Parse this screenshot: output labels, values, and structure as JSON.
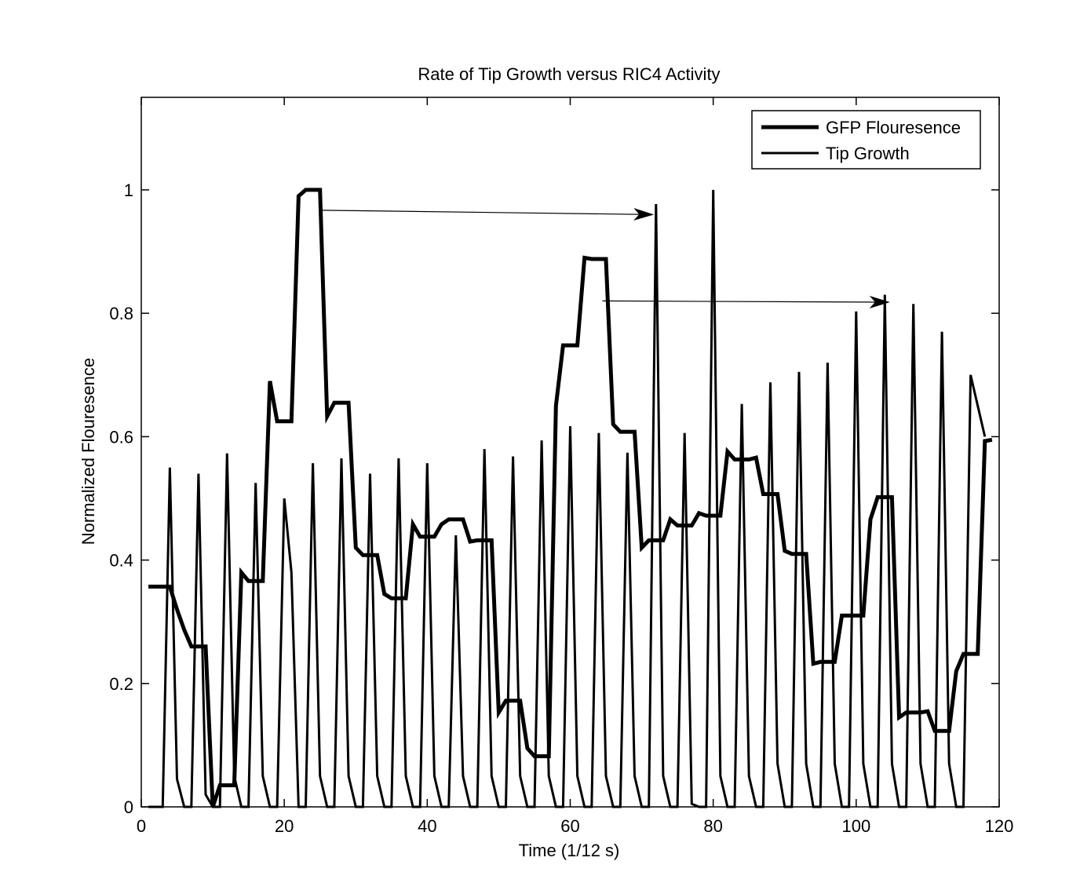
{
  "chart_data": {
    "type": "line",
    "title": "Rate of Tip Growth versus RIC4 Activity",
    "xlabel": "Time (1/12 s)",
    "ylabel": "Normalized Flouresence",
    "xlim": [
      0,
      120
    ],
    "ylim": [
      0,
      1.15
    ],
    "xticks": [
      0,
      20,
      40,
      60,
      80,
      100,
      120
    ],
    "yticks": [
      0,
      0.2,
      0.4,
      0.6,
      0.8,
      1
    ],
    "xtick_labels": [
      "0",
      "20",
      "40",
      "60",
      "80",
      "100",
      "120"
    ],
    "ytick_labels": [
      "0",
      "0.2",
      "0.4",
      "0.6",
      "0.8",
      "1"
    ],
    "grid": false,
    "legend_position": "top-right",
    "series": [
      {
        "name": "GFP Flouresence",
        "style": "thick",
        "x": [
          1,
          2,
          3,
          4,
          5,
          6,
          7,
          8,
          9,
          10,
          11,
          12,
          13,
          14,
          15,
          16,
          17,
          18,
          19,
          20,
          21,
          22,
          23,
          24,
          25,
          26,
          27,
          28,
          29,
          30,
          31,
          32,
          33,
          34,
          35,
          36,
          37,
          38,
          39,
          40,
          41,
          42,
          43,
          44,
          45,
          46,
          47,
          48,
          49,
          50,
          51,
          52,
          53,
          54,
          55,
          56,
          57,
          58,
          59,
          60,
          61,
          62,
          63,
          64,
          65,
          66,
          67,
          68,
          69,
          70,
          71,
          72,
          73,
          74,
          75,
          76,
          77,
          78,
          79,
          80,
          81,
          82,
          83,
          84,
          85,
          86,
          87,
          88,
          89,
          90,
          91,
          92,
          93,
          94,
          95,
          96,
          97,
          98,
          99,
          100,
          101,
          102,
          103,
          104,
          105,
          106,
          107,
          108,
          109,
          110,
          111,
          112,
          113,
          114,
          115,
          116,
          117,
          118,
          119
        ],
        "y": [
          0.357,
          0.357,
          0.357,
          0.357,
          0.32,
          0.287,
          0.26,
          0.26,
          0.26,
          0.0,
          0.035,
          0.035,
          0.035,
          0.38,
          0.366,
          0.366,
          0.366,
          0.69,
          0.625,
          0.625,
          0.625,
          0.99,
          1.0,
          1.0,
          1.0,
          0.633,
          0.655,
          0.655,
          0.655,
          0.42,
          0.408,
          0.408,
          0.408,
          0.345,
          0.338,
          0.338,
          0.338,
          0.458,
          0.438,
          0.438,
          0.438,
          0.458,
          0.466,
          0.466,
          0.466,
          0.43,
          0.432,
          0.432,
          0.432,
          0.153,
          0.172,
          0.172,
          0.172,
          0.095,
          0.082,
          0.082,
          0.082,
          0.65,
          0.748,
          0.748,
          0.748,
          0.89,
          0.888,
          0.888,
          0.888,
          0.62,
          0.608,
          0.608,
          0.608,
          0.42,
          0.432,
          0.432,
          0.432,
          0.466,
          0.456,
          0.456,
          0.456,
          0.476,
          0.472,
          0.472,
          0.472,
          0.576,
          0.563,
          0.563,
          0.563,
          0.566,
          0.507,
          0.507,
          0.507,
          0.415,
          0.41,
          0.41,
          0.41,
          0.232,
          0.235,
          0.235,
          0.235,
          0.31,
          0.31,
          0.31,
          0.31,
          0.466,
          0.502,
          0.502,
          0.502,
          0.145,
          0.153,
          0.153,
          0.153,
          0.155,
          0.123,
          0.123,
          0.123,
          0.22,
          0.248,
          0.248,
          0.248,
          0.593,
          0.595
        ]
      },
      {
        "name": "Tip Growth",
        "style": "thin",
        "x": [
          1,
          2,
          3,
          4,
          5,
          6,
          7,
          8,
          9,
          10,
          11,
          12,
          13,
          14,
          15,
          16,
          17,
          18,
          19,
          20,
          21,
          22,
          23,
          24,
          25,
          26,
          27,
          28,
          29,
          30,
          31,
          32,
          33,
          34,
          35,
          36,
          37,
          38,
          39,
          40,
          41,
          42,
          43,
          44,
          45,
          46,
          47,
          48,
          49,
          50,
          51,
          52,
          53,
          54,
          55,
          56,
          57,
          58,
          59,
          60,
          61,
          62,
          63,
          64,
          65,
          66,
          67,
          68,
          69,
          70,
          71,
          72,
          73,
          74,
          75,
          76,
          77,
          78,
          79,
          80,
          81,
          82,
          83,
          84,
          85,
          86,
          87,
          88,
          89,
          90,
          91,
          92,
          93,
          94,
          95,
          96,
          97,
          98,
          99,
          100,
          101,
          102,
          103,
          104,
          105,
          106,
          107,
          108,
          109,
          110,
          111,
          112,
          113,
          114,
          115,
          116,
          117,
          118
        ],
        "y": [
          0,
          0,
          0,
          0.55,
          0.045,
          0,
          0,
          0.54,
          0.02,
          0,
          0,
          0.573,
          0.05,
          0,
          0,
          0.525,
          0.05,
          0,
          0,
          0.5,
          0.38,
          0,
          0,
          0.557,
          0.05,
          0,
          0,
          0.565,
          0.05,
          0,
          0,
          0.54,
          0.05,
          0,
          0,
          0.565,
          0.05,
          0,
          0,
          0.557,
          0.05,
          0,
          0,
          0.44,
          0.05,
          0,
          0,
          0.58,
          0.05,
          0,
          0,
          0.568,
          0.05,
          0,
          0,
          0.594,
          0.05,
          0,
          0,
          0.617,
          0.05,
          0,
          0,
          0.606,
          0.05,
          0,
          0,
          0.574,
          0.05,
          0,
          0,
          0.977,
          0.05,
          0,
          0,
          0.606,
          0.005,
          0,
          0,
          1.0,
          0.05,
          0,
          0,
          0.653,
          0.05,
          0,
          0,
          0.688,
          0.07,
          0,
          0,
          0.705,
          0.07,
          0,
          0,
          0.72,
          0.07,
          0,
          0,
          0.803,
          0.07,
          0,
          0,
          0.83,
          0.07,
          0,
          0,
          0.815,
          0.07,
          0,
          0,
          0.77,
          0.07,
          0,
          0,
          0.7,
          0.65,
          0.6
        ]
      }
    ],
    "annotations": [
      {
        "type": "arrow",
        "from": [
          25.3,
          0.967
        ],
        "to": [
          71.5,
          0.96
        ]
      },
      {
        "type": "arrow",
        "from": [
          64.5,
          0.82
        ],
        "to": [
          104.5,
          0.818
        ]
      }
    ]
  }
}
